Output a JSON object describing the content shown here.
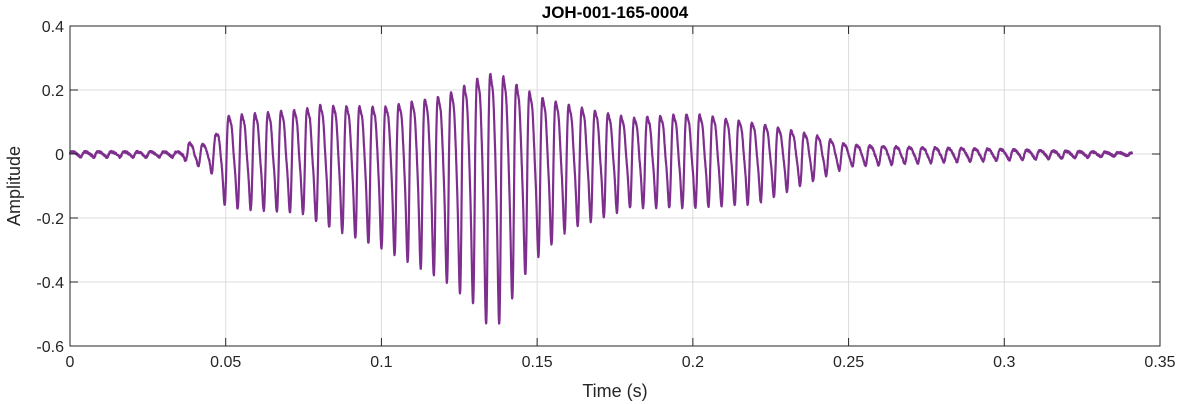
{
  "chart_data": {
    "type": "line",
    "title": "JOH-001-165-0004",
    "xlabel": "Time (s)",
    "ylabel": "Amplitude",
    "xlim": [
      0,
      0.35
    ],
    "ylim": [
      -0.6,
      0.4
    ],
    "grid": true,
    "box": true,
    "x_ticks": [
      0,
      0.05,
      0.1,
      0.15,
      0.2,
      0.25,
      0.3,
      0.35
    ],
    "x_tick_labels": [
      "0",
      "0.05",
      "0.1",
      "0.15",
      "0.2",
      "0.25",
      "0.3",
      "0.35"
    ],
    "y_ticks": [
      -0.6,
      -0.4,
      -0.2,
      0,
      0.2,
      0.4
    ],
    "y_tick_labels": [
      "-0.6",
      "-0.4",
      "-0.2",
      "0",
      "0.2",
      "0.4"
    ],
    "colors": {
      "line": "#7E2F8E",
      "grid": "#dcdcdc",
      "axes": "#262626"
    },
    "series": [
      {
        "values_approx": {
          "x_range": [
            0,
            0.341
          ],
          "envelope_peaks": [
            {
              "x": 0.0,
              "max": 0.01,
              "min": -0.01
            },
            {
              "x": 0.036,
              "max": 0.01,
              "min": -0.01
            },
            {
              "x": 0.038,
              "max": 0.05,
              "min": -0.03
            },
            {
              "x": 0.045,
              "max": 0.04,
              "min": -0.05
            },
            {
              "x": 0.05,
              "max": 0.17,
              "min": -0.17
            },
            {
              "x": 0.075,
              "max": 0.2,
              "min": -0.19
            },
            {
              "x": 0.08,
              "max": 0.22,
              "min": -0.22
            },
            {
              "x": 0.1,
              "max": 0.21,
              "min": -0.3
            },
            {
              "x": 0.12,
              "max": 0.26,
              "min": -0.4
            },
            {
              "x": 0.13,
              "max": 0.33,
              "min": -0.48
            },
            {
              "x": 0.133,
              "max": 0.36,
              "min": -0.54
            },
            {
              "x": 0.138,
              "max": 0.36,
              "min": -0.54
            },
            {
              "x": 0.145,
              "max": 0.3,
              "min": -0.4
            },
            {
              "x": 0.15,
              "max": 0.26,
              "min": -0.33
            },
            {
              "x": 0.16,
              "max": 0.22,
              "min": -0.24
            },
            {
              "x": 0.18,
              "max": 0.16,
              "min": -0.17
            },
            {
              "x": 0.2,
              "max": 0.18,
              "min": -0.17
            },
            {
              "x": 0.22,
              "max": 0.14,
              "min": -0.16
            },
            {
              "x": 0.24,
              "max": 0.08,
              "min": -0.08
            },
            {
              "x": 0.25,
              "max": 0.04,
              "min": -0.04
            },
            {
              "x": 0.27,
              "max": 0.03,
              "min": -0.03
            },
            {
              "x": 0.3,
              "max": 0.02,
              "min": -0.02
            },
            {
              "x": 0.341,
              "max": 0.005,
              "min": -0.005
            }
          ],
          "dominant_period_s": 0.0042
        }
      }
    ]
  }
}
